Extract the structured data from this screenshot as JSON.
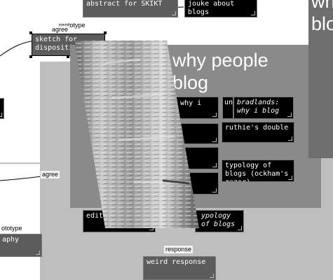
{
  "overlay_title": "why people blog",
  "corner_title": "wh blo",
  "notes": {
    "abstract": "abstract for SKIKT",
    "joke": "jouke about blogs",
    "sketch": "sketch for disposition w",
    "bradlands_prefix": "un",
    "bradlands": "bradlands: why i blog",
    "partial_why": "s: why i",
    "ruthie": "ruthie's double",
    "typology": "typology of blogs (ockham's razor)",
    "editing": "editing",
    "typology_partial": "ypology of blogs",
    "weird": "weird response",
    "graphy": "aphy"
  },
  "edge_labels": {
    "prototype_top": "prototype",
    "agree_top": "agree",
    "agree_mid": "agree",
    "prototype_left": "ototype",
    "response": "response"
  },
  "colors": {
    "overlay_panel": "#bebebe",
    "dark_panel": "#8a8a8a",
    "note_black": "#000000",
    "note_gray": "#5c5c5c"
  }
}
